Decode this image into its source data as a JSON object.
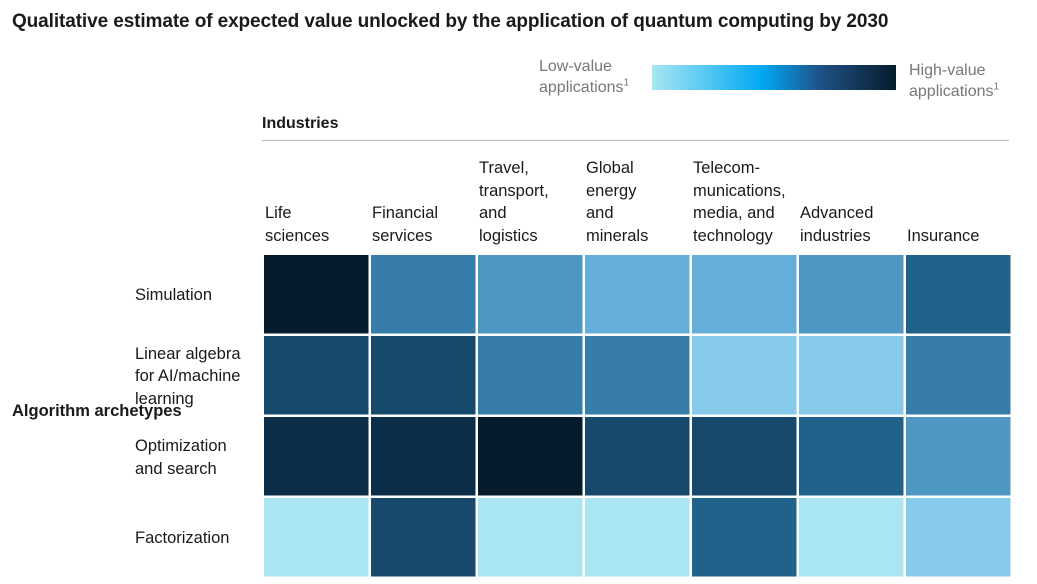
{
  "title": "Qualitative estimate of expected value unlocked by the application of quantum computing by 2030",
  "legend": {
    "low_label": "Low-value\napplications",
    "high_label": "High-value\napplications",
    "footnote_marker": "1"
  },
  "chart_data": {
    "type": "heatmap",
    "title": "Qualitative estimate of expected value unlocked by the application of quantum computing by 2030",
    "xlabel": "Industries",
    "ylabel": "Algorithm archetypes",
    "value_scale": "1 = low-value applications, 5 = high-value applications",
    "columns": [
      "Life\nsciences",
      "Financial\nservices",
      "Travel,\ntransport,\nand\nlogistics",
      "Global\nenergy\nand\nminerals",
      "Telecom-\nmunications,\nmedia, and\ntechnology",
      "Advanced\nindustries",
      "Insurance"
    ],
    "rows": [
      "Simulation",
      "Linear algebra\nfor AI/machine\nlearning",
      "Optimization\nand search",
      "Factorization"
    ],
    "values": [
      [
        5.0,
        3.0,
        2.5,
        2.0,
        2.0,
        2.5,
        3.5
      ],
      [
        4.0,
        4.0,
        3.0,
        3.0,
        1.5,
        1.5,
        3.0
      ],
      [
        4.5,
        4.5,
        5.0,
        4.0,
        4.0,
        3.5,
        2.5
      ],
      [
        1.0,
        4.0,
        1.0,
        1.0,
        3.5,
        1.0,
        1.5
      ]
    ],
    "color_stops": [
      "#a9e6f1",
      "#86cbea",
      "#64afd9",
      "#4e97c5",
      "#367ea9",
      "#21628a",
      "#16496b",
      "#0c2d47",
      "#061c2d"
    ]
  }
}
